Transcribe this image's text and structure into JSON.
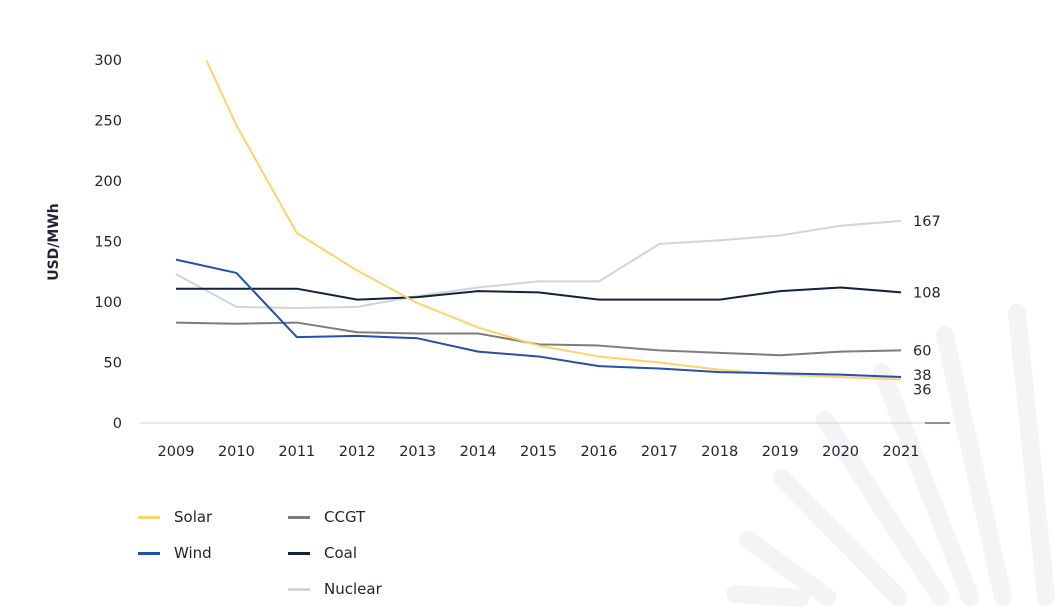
{
  "chart_data": {
    "type": "line",
    "title": "",
    "xlabel": "",
    "ylabel": "USD/MWh",
    "ylim": [
      0,
      300
    ],
    "yticks": [
      0,
      50,
      100,
      150,
      200,
      250,
      300
    ],
    "x": [
      2009,
      2010,
      2011,
      2012,
      2013,
      2014,
      2015,
      2016,
      2017,
      2018,
      2019,
      2020,
      2021
    ],
    "grid": false,
    "legend_placement": "bottom-left",
    "series": [
      {
        "name": "Solar",
        "color": "#fdd468",
        "points": [
          [
            2009.5,
            300
          ],
          [
            2010,
            246
          ],
          [
            2011,
            157
          ],
          [
            2012,
            126
          ],
          [
            2013,
            99
          ],
          [
            2014,
            79
          ],
          [
            2015,
            64
          ],
          [
            2016,
            55
          ],
          [
            2017,
            50
          ],
          [
            2018,
            44
          ],
          [
            2019,
            40
          ],
          [
            2020,
            38
          ],
          [
            2021,
            36
          ]
        ],
        "end_label": "36"
      },
      {
        "name": "Wind",
        "color": "#2350a8",
        "values": [
          135,
          124,
          71,
          72,
          70,
          59,
          55,
          47,
          45,
          42,
          41,
          40,
          38
        ],
        "end_label": "38"
      },
      {
        "name": "CCGT",
        "color": "#7d7d7d",
        "values": [
          83,
          82,
          83,
          75,
          74,
          74,
          65,
          64,
          60,
          58,
          56,
          59,
          60
        ],
        "end_label": "60"
      },
      {
        "name": "Coal",
        "color": "#0f2340",
        "values": [
          111,
          111,
          111,
          102,
          104,
          109,
          108,
          102,
          102,
          102,
          109,
          112,
          108
        ],
        "end_label": "108"
      },
      {
        "name": "Nuclear",
        "color": "#d4d4d4",
        "values": [
          123,
          96,
          95,
          96,
          105,
          112,
          117,
          117,
          148,
          151,
          155,
          163,
          167
        ],
        "end_label": "167"
      }
    ]
  }
}
